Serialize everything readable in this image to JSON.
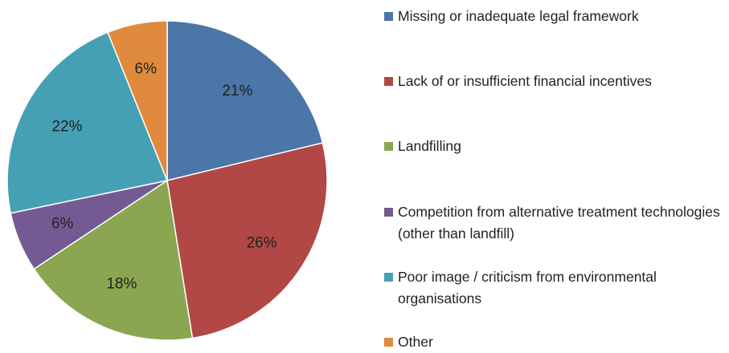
{
  "chart_data": {
    "type": "pie",
    "categories": [
      "Missing or inadequate legal framework",
      "Lack of or insufficient financial incentives",
      "Landfilling",
      "Competition from alternative treatment technologies (other than landfill)",
      "Poor image / criticism from environmental organisations",
      "Other"
    ],
    "values": [
      21,
      26,
      18,
      6,
      22,
      6
    ],
    "value_labels": [
      "21%",
      "26%",
      "18%",
      "6%",
      "22%",
      "6%"
    ],
    "colors": [
      "#4a76a8",
      "#b14845",
      "#8ba650",
      "#735a93",
      "#45a0b5",
      "#e08a3d"
    ],
    "legend": "right"
  }
}
